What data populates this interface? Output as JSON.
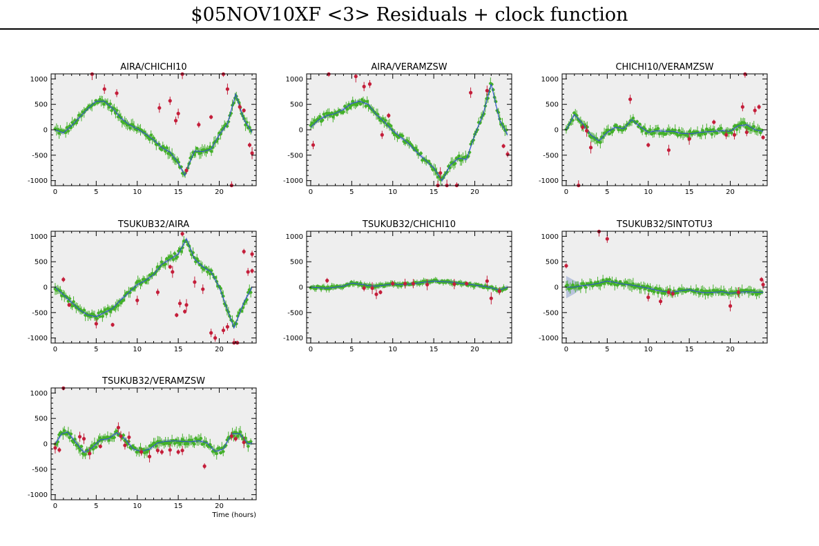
{
  "page": {
    "title": "$05NOV10XF <3> Residuals + clock function"
  },
  "colors": {
    "good_points": "#44b02a",
    "flagged_points": "#c41e3a",
    "clock_function": "#2a49d6",
    "clock_band": "#b9c3dc",
    "panel_bg": "#eeeeee"
  },
  "chart_data": [
    {
      "type": "scatter",
      "title": "AIRA/CHICHI10",
      "xlabel": "",
      "ylabel": "",
      "xlim": [
        -0.5,
        24.5
      ],
      "ylim": [
        -1100,
        1100
      ],
      "xticks": [
        0,
        5,
        10,
        15,
        20
      ],
      "yticks": [
        -1000,
        -500,
        0,
        500,
        1000
      ],
      "clock_function": [
        [
          0,
          0
        ],
        [
          1,
          -60
        ],
        [
          2,
          80
        ],
        [
          3,
          250
        ],
        [
          4,
          420
        ],
        [
          5,
          560
        ],
        [
          6,
          560
        ],
        [
          7,
          420
        ],
        [
          8,
          230
        ],
        [
          9,
          100
        ],
        [
          10,
          20
        ],
        [
          11,
          -80
        ],
        [
          12,
          -200
        ],
        [
          13,
          -350
        ],
        [
          14,
          -440
        ],
        [
          15,
          -650
        ],
        [
          15.8,
          -900
        ],
        [
          16.5,
          -600
        ],
        [
          17,
          -420
        ],
        [
          18,
          -430
        ],
        [
          19,
          -380
        ],
        [
          20,
          -100
        ],
        [
          21,
          120
        ],
        [
          22,
          700
        ],
        [
          23,
          200
        ],
        [
          24,
          -50
        ]
      ],
      "flagged_points": [
        [
          4.5,
          1100
        ],
        [
          6,
          800
        ],
        [
          7.5,
          720
        ],
        [
          12.7,
          430
        ],
        [
          14,
          570
        ],
        [
          14.7,
          180
        ],
        [
          15,
          320
        ],
        [
          15.5,
          1100
        ],
        [
          16,
          -800
        ],
        [
          17.5,
          100
        ],
        [
          19,
          250
        ],
        [
          20.5,
          1100
        ],
        [
          21,
          800
        ],
        [
          21.5,
          -1100
        ],
        [
          22.5,
          450
        ],
        [
          23,
          380
        ],
        [
          23.7,
          -300
        ],
        [
          24,
          -460
        ]
      ]
    },
    {
      "type": "scatter",
      "title": "AIRA/VERAMZSW",
      "xlabel": "",
      "ylabel": "",
      "xlim": [
        -0.5,
        24.5
      ],
      "ylim": [
        -1100,
        1100
      ],
      "xticks": [
        0,
        5,
        10,
        15,
        20
      ],
      "yticks": [
        -1000,
        -500,
        0,
        500,
        1000
      ],
      "clock_function": [
        [
          0,
          50
        ],
        [
          1,
          200
        ],
        [
          2,
          280
        ],
        [
          3,
          320
        ],
        [
          4,
          400
        ],
        [
          5,
          520
        ],
        [
          6,
          560
        ],
        [
          7,
          500
        ],
        [
          8,
          300
        ],
        [
          9,
          150
        ],
        [
          10,
          -20
        ],
        [
          11,
          -150
        ],
        [
          12,
          -280
        ],
        [
          13,
          -450
        ],
        [
          14,
          -600
        ],
        [
          15,
          -750
        ],
        [
          16,
          -1000
        ],
        [
          17,
          -700
        ],
        [
          18,
          -560
        ],
        [
          19,
          -580
        ],
        [
          20,
          -100
        ],
        [
          21,
          300
        ],
        [
          22,
          900
        ],
        [
          23,
          200
        ],
        [
          24,
          -100
        ]
      ],
      "flagged_points": [
        [
          0.3,
          -300
        ],
        [
          2.2,
          1100
        ],
        [
          5.5,
          1050
        ],
        [
          6.5,
          850
        ],
        [
          7.2,
          900
        ],
        [
          8.7,
          -100
        ],
        [
          9.5,
          280
        ],
        [
          15.5,
          -1100
        ],
        [
          15.8,
          -850
        ],
        [
          16.6,
          -1100
        ],
        [
          17.8,
          -1100
        ],
        [
          19.5,
          730
        ],
        [
          21.5,
          770
        ],
        [
          23.5,
          -320
        ],
        [
          24,
          -480
        ]
      ]
    },
    {
      "type": "scatter",
      "title": "CHICHI10/VERAMZSW",
      "xlabel": "",
      "ylabel": "",
      "xlim": [
        -0.5,
        24.5
      ],
      "ylim": [
        -1100,
        1100
      ],
      "xticks": [
        0,
        5,
        10,
        15,
        20
      ],
      "yticks": [
        -1000,
        -500,
        0,
        500,
        1000
      ],
      "clock_function": [
        [
          0,
          0
        ],
        [
          1,
          300
        ],
        [
          2,
          120
        ],
        [
          3,
          -100
        ],
        [
          4,
          -220
        ],
        [
          5,
          -50
        ],
        [
          6,
          50
        ],
        [
          7,
          20
        ],
        [
          8,
          200
        ],
        [
          9,
          60
        ],
        [
          10,
          -50
        ],
        [
          11,
          -20
        ],
        [
          12,
          -30
        ],
        [
          13,
          -30
        ],
        [
          14,
          -70
        ],
        [
          15,
          -80
        ],
        [
          16,
          -60
        ],
        [
          17,
          -40
        ],
        [
          18,
          -30
        ],
        [
          19,
          -20
        ],
        [
          20,
          -30
        ],
        [
          21,
          80
        ],
        [
          22,
          100
        ],
        [
          23,
          0
        ],
        [
          24,
          -30
        ]
      ],
      "flagged_points": [
        [
          1.5,
          -1100
        ],
        [
          2,
          50
        ],
        [
          2.5,
          -20
        ],
        [
          3,
          -350
        ],
        [
          7.8,
          600
        ],
        [
          10,
          -300
        ],
        [
          12.5,
          -400
        ],
        [
          15,
          -180
        ],
        [
          18,
          150
        ],
        [
          19.5,
          -100
        ],
        [
          20.5,
          -100
        ],
        [
          21.5,
          450
        ],
        [
          21.8,
          1100
        ],
        [
          22,
          -50
        ],
        [
          23,
          380
        ],
        [
          23.5,
          450
        ],
        [
          24,
          -150
        ]
      ]
    },
    {
      "type": "scatter",
      "title": "TSUKUB32/AIRA",
      "xlabel": "",
      "ylabel": "",
      "xlim": [
        -0.5,
        24.5
      ],
      "ylim": [
        -1100,
        1100
      ],
      "xticks": [
        0,
        5,
        10,
        15,
        20
      ],
      "yticks": [
        -1000,
        -500,
        0,
        500,
        1000
      ],
      "clock_function": [
        [
          0,
          0
        ],
        [
          1,
          -150
        ],
        [
          2,
          -300
        ],
        [
          3,
          -450
        ],
        [
          4,
          -550
        ],
        [
          5,
          -580
        ],
        [
          6,
          -500
        ],
        [
          7,
          -420
        ],
        [
          8,
          -250
        ],
        [
          9,
          -100
        ],
        [
          10,
          50
        ],
        [
          11,
          130
        ],
        [
          12,
          250
        ],
        [
          13,
          450
        ],
        [
          14,
          550
        ],
        [
          15,
          650
        ],
        [
          16,
          950
        ],
        [
          17,
          550
        ],
        [
          18,
          400
        ],
        [
          19,
          300
        ],
        [
          20,
          0
        ],
        [
          21,
          -450
        ],
        [
          21.8,
          -800
        ],
        [
          23,
          -300
        ],
        [
          24,
          0
        ]
      ],
      "flagged_points": [
        [
          1,
          150
        ],
        [
          1.7,
          -350
        ],
        [
          5,
          -720
        ],
        [
          7,
          -740
        ],
        [
          10,
          -260
        ],
        [
          12.5,
          -100
        ],
        [
          14,
          400
        ],
        [
          14.3,
          300
        ],
        [
          14.8,
          -550
        ],
        [
          15.2,
          -320
        ],
        [
          15.5,
          1050
        ],
        [
          15.8,
          -480
        ],
        [
          16,
          -350
        ],
        [
          17,
          100
        ],
        [
          18,
          -40
        ],
        [
          19,
          -900
        ],
        [
          19.5,
          -1000
        ],
        [
          20.5,
          -850
        ],
        [
          21,
          -780
        ],
        [
          21.8,
          -1100
        ],
        [
          22.2,
          -1100
        ],
        [
          23,
          700
        ],
        [
          23.5,
          300
        ],
        [
          24,
          650
        ],
        [
          24,
          320
        ]
      ]
    },
    {
      "type": "scatter",
      "title": "TSUKUB32/CHICHI10",
      "xlabel": "",
      "ylabel": "",
      "xlim": [
        -0.5,
        24.5
      ],
      "ylim": [
        -1100,
        1100
      ],
      "xticks": [
        0,
        5,
        10,
        15,
        20
      ],
      "yticks": [
        -1000,
        -500,
        0,
        500,
        1000
      ],
      "clock_function": [
        [
          0,
          0
        ],
        [
          2,
          -20
        ],
        [
          4,
          20
        ],
        [
          5,
          80
        ],
        [
          6,
          60
        ],
        [
          7,
          30
        ],
        [
          8,
          20
        ],
        [
          9,
          40
        ],
        [
          10,
          60
        ],
        [
          11,
          50
        ],
        [
          12,
          60
        ],
        [
          13,
          80
        ],
        [
          14,
          100
        ],
        [
          15,
          120
        ],
        [
          16,
          110
        ],
        [
          17,
          100
        ],
        [
          18,
          80
        ],
        [
          19,
          60
        ],
        [
          20,
          40
        ],
        [
          21,
          20
        ],
        [
          22,
          -10
        ],
        [
          23,
          -60
        ],
        [
          24,
          0
        ]
      ],
      "flagged_points": [
        [
          2,
          130
        ],
        [
          6.5,
          -20
        ],
        [
          7.5,
          -20
        ],
        [
          8,
          -140
        ],
        [
          8.5,
          -100
        ],
        [
          10,
          70
        ],
        [
          11.5,
          70
        ],
        [
          12.5,
          70
        ],
        [
          14.2,
          50
        ],
        [
          17.5,
          60
        ],
        [
          19,
          70
        ],
        [
          21.5,
          120
        ],
        [
          22,
          -220
        ],
        [
          23,
          -80
        ]
      ]
    },
    {
      "type": "scatter",
      "title": "TSUKUB32/SINTOTU3",
      "xlabel": "",
      "ylabel": "",
      "xlim": [
        -0.5,
        24.5
      ],
      "ylim": [
        -1100,
        1100
      ],
      "xticks": [
        0,
        5,
        10,
        15,
        20
      ],
      "yticks": [
        -1000,
        -500,
        0,
        500,
        1000
      ],
      "clock_function": [
        [
          0,
          0
        ],
        [
          1,
          0
        ],
        [
          2,
          30
        ],
        [
          3,
          50
        ],
        [
          4,
          80
        ],
        [
          5,
          120
        ],
        [
          6,
          90
        ],
        [
          7,
          60
        ],
        [
          8,
          40
        ],
        [
          9,
          10
        ],
        [
          10,
          -20
        ],
        [
          11,
          -60
        ],
        [
          12,
          -90
        ],
        [
          13,
          -100
        ],
        [
          14,
          -70
        ],
        [
          15,
          -50
        ],
        [
          16,
          -90
        ],
        [
          17,
          -110
        ],
        [
          18,
          -100
        ],
        [
          19,
          -90
        ],
        [
          20,
          -120
        ],
        [
          21,
          -100
        ],
        [
          22,
          -90
        ],
        [
          23,
          -100
        ],
        [
          24,
          -100
        ]
      ],
      "flagged_points": [
        [
          0,
          420
        ],
        [
          4,
          1100
        ],
        [
          5,
          950
        ],
        [
          10,
          -200
        ],
        [
          11.5,
          -280
        ],
        [
          12.5,
          -100
        ],
        [
          13,
          -130
        ],
        [
          20,
          -370
        ],
        [
          21,
          -100
        ],
        [
          23.8,
          150
        ],
        [
          24,
          50
        ]
      ]
    },
    {
      "type": "scatter",
      "title": "TSUKUB32/VERAMZSW",
      "xlabel": "Time (hours)",
      "ylabel": "",
      "xlim": [
        -0.5,
        24.5
      ],
      "ylim": [
        -1100,
        1100
      ],
      "xticks": [
        0,
        5,
        10,
        15,
        20
      ],
      "yticks": [
        -1000,
        -500,
        0,
        500,
        1000
      ],
      "clock_function": [
        [
          0,
          0
        ],
        [
          0.8,
          200
        ],
        [
          1.5,
          230
        ],
        [
          2.5,
          30
        ],
        [
          3.5,
          -170
        ],
        [
          4.5,
          -80
        ],
        [
          5.5,
          80
        ],
        [
          6.5,
          100
        ],
        [
          7.5,
          220
        ],
        [
          8.5,
          100
        ],
        [
          9.5,
          -100
        ],
        [
          10.5,
          -150
        ],
        [
          11.5,
          -100
        ],
        [
          12.5,
          20
        ],
        [
          13.5,
          50
        ],
        [
          14.5,
          60
        ],
        [
          15.5,
          50
        ],
        [
          16.5,
          40
        ],
        [
          17.5,
          60
        ],
        [
          18.5,
          20
        ],
        [
          19.5,
          -150
        ],
        [
          20.5,
          -100
        ],
        [
          21.5,
          200
        ],
        [
          22.5,
          200
        ],
        [
          23.5,
          0
        ],
        [
          24,
          20
        ]
      ],
      "flagged_points": [
        [
          0,
          -80
        ],
        [
          0.5,
          -120
        ],
        [
          1,
          1120
        ],
        [
          3,
          140
        ],
        [
          3.5,
          100
        ],
        [
          4.2,
          -190
        ],
        [
          5.5,
          -50
        ],
        [
          7.7,
          320
        ],
        [
          8,
          150
        ],
        [
          8.5,
          -30
        ],
        [
          9,
          130
        ],
        [
          10.5,
          -160
        ],
        [
          11.5,
          -250
        ],
        [
          12.5,
          -130
        ],
        [
          13,
          -160
        ],
        [
          14,
          -120
        ],
        [
          15,
          -160
        ],
        [
          15.5,
          -130
        ],
        [
          18.2,
          -440
        ],
        [
          21.5,
          150
        ],
        [
          22,
          100
        ],
        [
          23,
          30
        ]
      ]
    }
  ]
}
